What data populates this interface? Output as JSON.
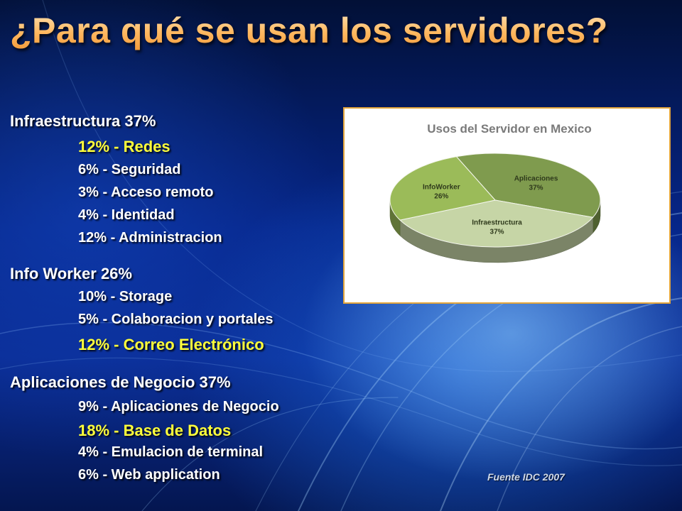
{
  "title": "¿Para qué se usan los servidores?",
  "groups": [
    {
      "heading": "Infraestructura 37%",
      "items": [
        {
          "text": "12% - Redes",
          "highlight": true
        },
        {
          "text": "6% - Seguridad",
          "highlight": false
        },
        {
          "text": "3% - Acceso remoto",
          "highlight": false
        },
        {
          "text": "4% - Identidad",
          "highlight": false
        },
        {
          "text": "12% - Administracion",
          "highlight": false
        }
      ]
    },
    {
      "heading": "Info Worker 26%",
      "items": [
        {
          "text": "10% - Storage",
          "highlight": false
        },
        {
          "text": "5% - Colaboracion y portales",
          "highlight": false
        },
        {
          "text": "12% - Correo Electrónico",
          "highlight": true
        }
      ]
    },
    {
      "heading": "Aplicaciones de Negocio 37%",
      "items": [
        {
          "text": "9% - Aplicaciones de Negocio",
          "highlight": false
        },
        {
          "text": "18% - Base de Datos",
          "highlight": true
        },
        {
          "text": "4% - Emulacion de terminal",
          "highlight": false
        },
        {
          "text": "6% - Web application",
          "highlight": false
        }
      ]
    }
  ],
  "source": "Fuente IDC 2007",
  "colors": {
    "highlight": "#ffff3a",
    "title_accent": "#ffb860",
    "chart_border": "#e3a53b"
  },
  "chart_data": {
    "type": "pie",
    "title": "Usos del Servidor en Mexico",
    "style": "3d",
    "legend": "none",
    "slices": [
      {
        "label": "Aplicaciones",
        "value": 37,
        "display": "37%",
        "color": "#7f9b4e"
      },
      {
        "label": "Infraestructura",
        "value": 37,
        "display": "37%",
        "color": "#c6d5a6"
      },
      {
        "label": "InfoWorker",
        "value": 26,
        "display": "26%",
        "color": "#9bbb59"
      }
    ]
  }
}
